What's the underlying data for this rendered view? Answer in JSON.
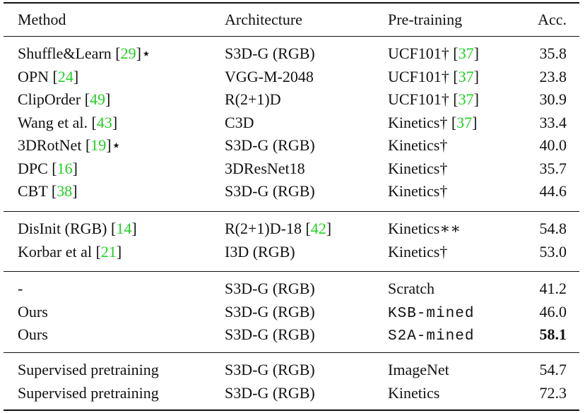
{
  "header": {
    "method": "Method",
    "architecture": "Architecture",
    "pretraining": "Pre-training",
    "accuracy": "Acc."
  },
  "groups": [
    {
      "rows": [
        {
          "method": "Shuffle&Learn",
          "method_cite": "29",
          "method_suffix": "⋆",
          "architecture": "S3D-G (RGB)",
          "arch_cite": "",
          "pretraining": "UCF101†",
          "pre_cite": "37",
          "accuracy": "35.8"
        },
        {
          "method": "OPN",
          "method_cite": "24",
          "method_suffix": "",
          "architecture": "VGG-M-2048",
          "arch_cite": "",
          "pretraining": "UCF101†",
          "pre_cite": "37",
          "accuracy": "23.8"
        },
        {
          "method": "ClipOrder",
          "method_cite": "49",
          "method_suffix": "",
          "architecture": "R(2+1)D",
          "arch_cite": "",
          "pretraining": "UCF101†",
          "pre_cite": "37",
          "accuracy": "30.9"
        },
        {
          "method": "Wang et al.",
          "method_cite": "43",
          "method_suffix": "",
          "architecture": "C3D",
          "arch_cite": "",
          "pretraining": "Kinetics†",
          "pre_cite": "37",
          "accuracy": "33.4"
        },
        {
          "method": "3DRotNet",
          "method_cite": "19",
          "method_suffix": "⋆",
          "architecture": "S3D-G (RGB)",
          "arch_cite": "",
          "pretraining": "Kinetics†",
          "pre_cite": "",
          "accuracy": "40.0"
        },
        {
          "method": "DPC",
          "method_cite": "16",
          "method_suffix": "",
          "architecture": "3DResNet18",
          "arch_cite": "",
          "pretraining": "Kinetics†",
          "pre_cite": "",
          "accuracy": "35.7"
        },
        {
          "method": "CBT",
          "method_cite": "38",
          "method_suffix": "",
          "architecture": "S3D-G (RGB)",
          "arch_cite": "",
          "pretraining": "Kinetics†",
          "pre_cite": "",
          "accuracy": "44.6"
        }
      ]
    },
    {
      "rows": [
        {
          "method": "DisInit (RGB)",
          "method_cite": "14",
          "method_suffix": "",
          "architecture": "R(2+1)D-18",
          "arch_cite": "42",
          "pretraining": "Kinetics∗∗",
          "pre_cite": "",
          "accuracy": "54.8"
        },
        {
          "method": "Korbar et al",
          "method_cite": "21",
          "method_suffix": "",
          "architecture": "I3D (RGB)",
          "arch_cite": "",
          "pretraining": "Kinetics†",
          "pre_cite": "",
          "accuracy": "53.0"
        }
      ]
    },
    {
      "rows": [
        {
          "method": "-",
          "method_cite": "",
          "method_suffix": "",
          "architecture": "S3D-G (RGB)",
          "arch_cite": "",
          "pretraining": "Scratch",
          "pre_cite": "",
          "accuracy": "41.2"
        },
        {
          "method": "Ours",
          "method_cite": "",
          "method_suffix": "",
          "architecture": "S3D-G (RGB)",
          "arch_cite": "",
          "pretraining": "KSB-mined",
          "pre_cite": "",
          "pre_mono": true,
          "accuracy": "46.0"
        },
        {
          "method": "Ours",
          "method_cite": "",
          "method_suffix": "",
          "architecture": "S3D-G (RGB)",
          "arch_cite": "",
          "pretraining": "S2A-mined",
          "pre_cite": "",
          "pre_mono": true,
          "accuracy": "58.1",
          "acc_bold": true
        }
      ]
    },
    {
      "rows": [
        {
          "method": "Supervised pretraining",
          "method_cite": "",
          "method_suffix": "",
          "architecture": "S3D-G (RGB)",
          "arch_cite": "",
          "pretraining": "ImageNet",
          "pre_cite": "",
          "accuracy": "54.7"
        },
        {
          "method": "Supervised pretraining",
          "method_cite": "",
          "method_suffix": "",
          "architecture": "S3D-G (RGB)",
          "arch_cite": "",
          "pretraining": "Kinetics",
          "pre_cite": "",
          "accuracy": "72.3"
        }
      ]
    }
  ]
}
